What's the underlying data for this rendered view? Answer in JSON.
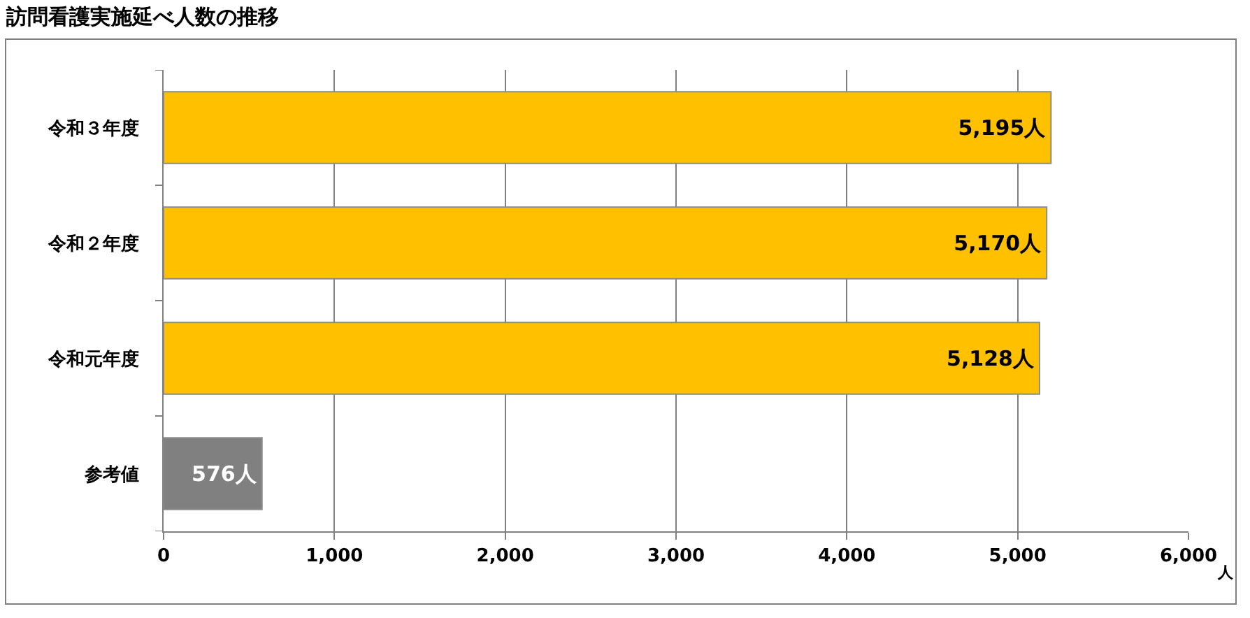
{
  "chart_data": {
    "type": "bar",
    "orientation": "horizontal",
    "title": "訪問看護実施延べ人数の推移",
    "xlabel": "人",
    "categories": [
      "令和３年度",
      "令和２年度",
      "令和元年度",
      "参考値"
    ],
    "values": [
      5195,
      5170,
      5128,
      576
    ],
    "colors": [
      "#ffc000",
      "#ffc000",
      "#ffc000",
      "#808080"
    ],
    "value_labels": [
      "5,195人",
      "5,170人",
      "5,128人",
      "576人"
    ],
    "xlim": [
      0,
      6000
    ],
    "xticks": [
      0,
      {
        "value": 1000,
        "label": "1,000"
      },
      {
        "value": 2000,
        "label": "2,000"
      },
      {
        "value": 3000,
        "label": "3,000"
      },
      {
        "value": 4000,
        "label": "4,000"
      },
      {
        "value": 5000,
        "label": "5,000"
      },
      {
        "value": 6000,
        "label": "6,000"
      }
    ],
    "grid": "x",
    "legend": false
  }
}
